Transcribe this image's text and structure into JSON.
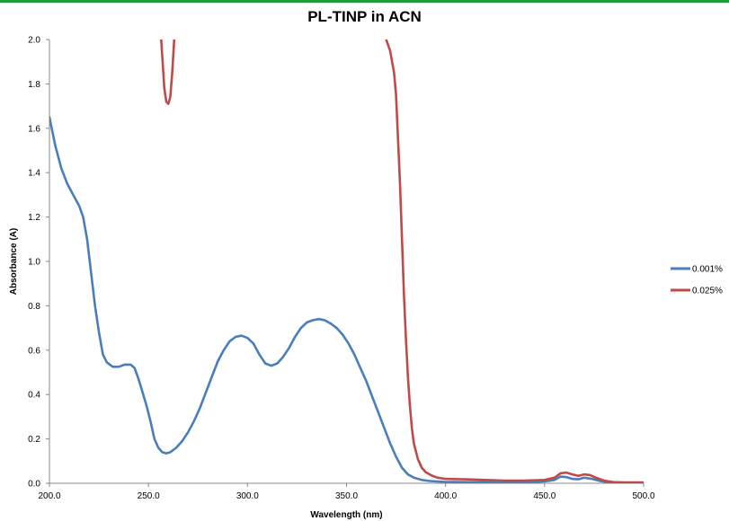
{
  "chart_data": {
    "type": "line",
    "title": "PL-TINP in ACN",
    "xlabel": "Wavelength (nm)",
    "ylabel": "Absorbance (A)",
    "xlim": [
      200,
      500
    ],
    "ylim": [
      0,
      2.0
    ],
    "x_ticks": [
      200,
      250,
      300,
      350,
      400,
      450,
      500
    ],
    "x_tick_labels": [
      "200.0",
      "250.0",
      "300.0",
      "350.0",
      "400.0",
      "450.0",
      "500.0"
    ],
    "y_ticks": [
      0,
      0.2,
      0.4,
      0.6,
      0.8,
      1.0,
      1.2,
      1.4,
      1.6,
      1.8,
      2.0
    ],
    "y_tick_labels": [
      "0.0",
      "0.2",
      "0.4",
      "0.6",
      "0.8",
      "1.0",
      "1.2",
      "1.4",
      "1.6",
      "1.8",
      "2.0"
    ],
    "grid": false,
    "legend_position": "right",
    "series": [
      {
        "name": "0.001%",
        "color": "#4a7ebb",
        "points": [
          [
            200,
            1.65
          ],
          [
            203,
            1.52
          ],
          [
            206,
            1.42
          ],
          [
            209,
            1.35
          ],
          [
            212,
            1.3
          ],
          [
            215,
            1.25
          ],
          [
            217,
            1.2
          ],
          [
            219,
            1.1
          ],
          [
            221,
            0.95
          ],
          [
            223,
            0.8
          ],
          [
            225,
            0.68
          ],
          [
            227,
            0.58
          ],
          [
            229,
            0.545
          ],
          [
            232,
            0.525
          ],
          [
            235,
            0.525
          ],
          [
            238,
            0.535
          ],
          [
            241,
            0.535
          ],
          [
            243,
            0.52
          ],
          [
            245,
            0.47
          ],
          [
            247,
            0.41
          ],
          [
            249,
            0.35
          ],
          [
            251,
            0.28
          ],
          [
            253,
            0.2
          ],
          [
            255,
            0.16
          ],
          [
            257,
            0.14
          ],
          [
            259,
            0.135
          ],
          [
            261,
            0.14
          ],
          [
            264,
            0.16
          ],
          [
            267,
            0.19
          ],
          [
            270,
            0.23
          ],
          [
            273,
            0.28
          ],
          [
            276,
            0.34
          ],
          [
            279,
            0.41
          ],
          [
            282,
            0.48
          ],
          [
            285,
            0.55
          ],
          [
            288,
            0.6
          ],
          [
            291,
            0.64
          ],
          [
            294,
            0.66
          ],
          [
            297,
            0.665
          ],
          [
            300,
            0.655
          ],
          [
            303,
            0.63
          ],
          [
            306,
            0.58
          ],
          [
            309,
            0.54
          ],
          [
            312,
            0.53
          ],
          [
            315,
            0.54
          ],
          [
            318,
            0.57
          ],
          [
            321,
            0.61
          ],
          [
            324,
            0.66
          ],
          [
            327,
            0.7
          ],
          [
            330,
            0.725
          ],
          [
            333,
            0.735
          ],
          [
            336,
            0.74
          ],
          [
            339,
            0.735
          ],
          [
            342,
            0.72
          ],
          [
            345,
            0.7
          ],
          [
            348,
            0.67
          ],
          [
            351,
            0.63
          ],
          [
            354,
            0.58
          ],
          [
            357,
            0.52
          ],
          [
            360,
            0.46
          ],
          [
            363,
            0.39
          ],
          [
            366,
            0.32
          ],
          [
            369,
            0.25
          ],
          [
            372,
            0.18
          ],
          [
            375,
            0.12
          ],
          [
            378,
            0.07
          ],
          [
            381,
            0.04
          ],
          [
            384,
            0.025
          ],
          [
            388,
            0.015
          ],
          [
            392,
            0.01
          ],
          [
            396,
            0.008
          ],
          [
            400,
            0.006
          ],
          [
            420,
            0.005
          ],
          [
            440,
            0.005
          ],
          [
            450,
            0.008
          ],
          [
            455,
            0.015
          ],
          [
            458,
            0.03
          ],
          [
            461,
            0.028
          ],
          [
            464,
            0.02
          ],
          [
            467,
            0.018
          ],
          [
            470,
            0.025
          ],
          [
            474,
            0.02
          ],
          [
            478,
            0.01
          ],
          [
            482,
            0.005
          ],
          [
            490,
            0.003
          ],
          [
            500,
            0.003
          ]
        ]
      },
      {
        "name": "0.025%",
        "color": "#be4b48",
        "segments": [
          [
            [
              256.4,
              2.0
            ],
            [
              257,
              1.92
            ],
            [
              258,
              1.78
            ],
            [
              259,
              1.72
            ],
            [
              260,
              1.71
            ],
            [
              261,
              1.74
            ],
            [
              262,
              1.85
            ],
            [
              263,
              2.0
            ]
          ],
          [
            [
              370,
              2.0
            ],
            [
              372,
              1.95
            ],
            [
              374,
              1.85
            ],
            [
              375,
              1.75
            ],
            [
              376,
              1.55
            ],
            [
              377,
              1.35
            ],
            [
              378,
              1.1
            ],
            [
              379,
              0.85
            ],
            [
              380,
              0.65
            ],
            [
              381,
              0.48
            ],
            [
              382,
              0.35
            ],
            [
              383,
              0.25
            ],
            [
              384,
              0.18
            ],
            [
              386,
              0.11
            ],
            [
              388,
              0.07
            ],
            [
              390,
              0.05
            ],
            [
              393,
              0.035
            ],
            [
              396,
              0.025
            ],
            [
              400,
              0.02
            ],
            [
              410,
              0.018
            ],
            [
              420,
              0.015
            ],
            [
              430,
              0.012
            ],
            [
              440,
              0.012
            ],
            [
              450,
              0.015
            ],
            [
              455,
              0.025
            ],
            [
              458,
              0.045
            ],
            [
              461,
              0.048
            ],
            [
              464,
              0.04
            ],
            [
              467,
              0.033
            ],
            [
              470,
              0.04
            ],
            [
              473,
              0.037
            ],
            [
              476,
              0.025
            ],
            [
              480,
              0.012
            ],
            [
              485,
              0.005
            ],
            [
              490,
              0.004
            ],
            [
              500,
              0.004
            ]
          ]
        ]
      }
    ]
  }
}
